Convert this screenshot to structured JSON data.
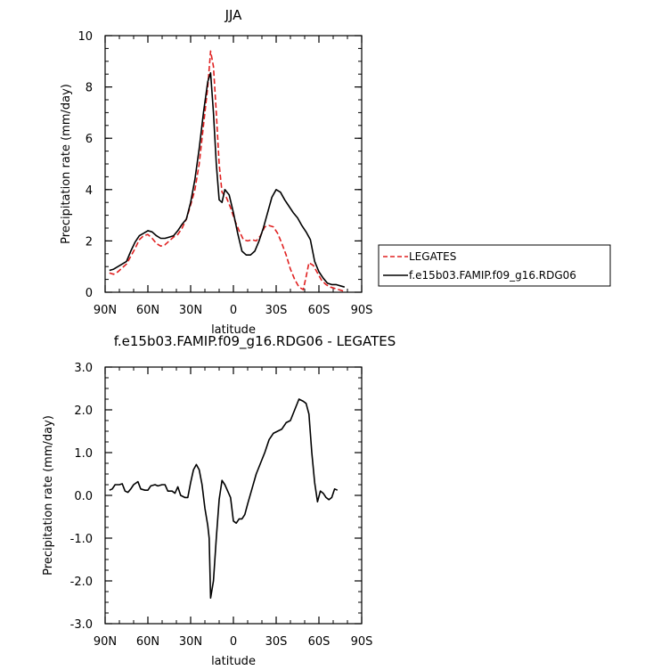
{
  "chart_data": [
    {
      "type": "line",
      "title": "JJA",
      "xlabel": "latitude",
      "ylabel": "Precipitation rate (mm/day)",
      "xlim": [
        90,
        -90
      ],
      "ylim": [
        0,
        10
      ],
      "xticks": [
        90,
        60,
        30,
        0,
        -30,
        -60,
        -90
      ],
      "xtick_labels": [
        "90N",
        "60N",
        "30N",
        "0",
        "30S",
        "60S",
        "90S"
      ],
      "yticks": [
        0,
        2,
        4,
        6,
        8,
        10
      ],
      "ytick_labels": [
        "0",
        "2",
        "4",
        "6",
        "8",
        "10"
      ],
      "legend": "right",
      "series": [
        {
          "name": "LEGATES",
          "color": "#e02020",
          "dash": true,
          "points": [
            [
              87,
              0.75
            ],
            [
              84,
              0.7
            ],
            [
              81,
              0.8
            ],
            [
              78,
              0.95
            ],
            [
              75,
              1.1
            ],
            [
              72,
              1.4
            ],
            [
              69,
              1.7
            ],
            [
              66,
              2.05
            ],
            [
              63,
              2.2
            ],
            [
              60,
              2.25
            ],
            [
              57,
              2.1
            ],
            [
              54,
              1.9
            ],
            [
              51,
              1.8
            ],
            [
              48,
              1.85
            ],
            [
              45,
              2.0
            ],
            [
              42,
              2.15
            ],
            [
              39,
              2.25
            ],
            [
              36,
              2.5
            ],
            [
              33,
              2.85
            ],
            [
              30,
              3.4
            ],
            [
              27,
              4.0
            ],
            [
              24,
              5.0
            ],
            [
              21,
              6.5
            ],
            [
              18,
              8.0
            ],
            [
              16,
              9.4
            ],
            [
              14,
              8.8
            ],
            [
              12,
              7.0
            ],
            [
              10,
              5.0
            ],
            [
              8,
              3.9
            ],
            [
              5,
              3.7
            ],
            [
              2,
              3.3
            ],
            [
              -1,
              2.8
            ],
            [
              -4,
              2.4
            ],
            [
              -7,
              2.05
            ],
            [
              -10,
              2.0
            ],
            [
              -13,
              2.05
            ],
            [
              -16,
              2.0
            ],
            [
              -19,
              2.2
            ],
            [
              -22,
              2.55
            ],
            [
              -25,
              2.6
            ],
            [
              -28,
              2.55
            ],
            [
              -31,
              2.3
            ],
            [
              -34,
              1.9
            ],
            [
              -37,
              1.45
            ],
            [
              -40,
              0.9
            ],
            [
              -43,
              0.5
            ],
            [
              -46,
              0.2
            ],
            [
              -49,
              0.1
            ],
            [
              -51,
              0.6
            ],
            [
              -53,
              1.15
            ],
            [
              -56,
              1.05
            ],
            [
              -59,
              0.75
            ],
            [
              -62,
              0.45
            ],
            [
              -65,
              0.3
            ],
            [
              -68,
              0.2
            ],
            [
              -71,
              0.15
            ],
            [
              -74,
              0.1
            ],
            [
              -77,
              0.05
            ]
          ]
        },
        {
          "name": "f.e15b03.FAMIP.f09_g16.RDG06",
          "color": "#000000",
          "dash": false,
          "points": [
            [
              87,
              0.85
            ],
            [
              84,
              0.9
            ],
            [
              81,
              1.0
            ],
            [
              78,
              1.1
            ],
            [
              75,
              1.2
            ],
            [
              72,
              1.6
            ],
            [
              69,
              1.95
            ],
            [
              66,
              2.2
            ],
            [
              63,
              2.3
            ],
            [
              60,
              2.4
            ],
            [
              57,
              2.35
            ],
            [
              54,
              2.2
            ],
            [
              51,
              2.1
            ],
            [
              48,
              2.1
            ],
            [
              45,
              2.15
            ],
            [
              42,
              2.2
            ],
            [
              39,
              2.4
            ],
            [
              36,
              2.65
            ],
            [
              33,
              2.85
            ],
            [
              30,
              3.5
            ],
            [
              27,
              4.4
            ],
            [
              24,
              5.6
            ],
            [
              21,
              7.0
            ],
            [
              18,
              8.2
            ],
            [
              16,
              8.55
            ],
            [
              14,
              7.0
            ],
            [
              12,
              5.0
            ],
            [
              10,
              3.6
            ],
            [
              8,
              3.5
            ],
            [
              6,
              4.0
            ],
            [
              3,
              3.8
            ],
            [
              0,
              3.1
            ],
            [
              -3,
              2.3
            ],
            [
              -6,
              1.6
            ],
            [
              -9,
              1.45
            ],
            [
              -12,
              1.45
            ],
            [
              -15,
              1.6
            ],
            [
              -18,
              2.0
            ],
            [
              -21,
              2.5
            ],
            [
              -24,
              3.1
            ],
            [
              -27,
              3.7
            ],
            [
              -30,
              4.0
            ],
            [
              -33,
              3.9
            ],
            [
              -36,
              3.6
            ],
            [
              -39,
              3.35
            ],
            [
              -42,
              3.1
            ],
            [
              -45,
              2.9
            ],
            [
              -48,
              2.6
            ],
            [
              -51,
              2.35
            ],
            [
              -54,
              2.05
            ],
            [
              -57,
              1.2
            ],
            [
              -60,
              0.8
            ],
            [
              -63,
              0.55
            ],
            [
              -66,
              0.35
            ],
            [
              -69,
              0.3
            ],
            [
              -72,
              0.3
            ],
            [
              -75,
              0.25
            ],
            [
              -78,
              0.2
            ]
          ]
        }
      ]
    },
    {
      "type": "line",
      "title": "f.e15b03.FAMIP.f09_g16.RDG06 - LEGATES",
      "xlabel": "latitude",
      "ylabel": "Precipitation rate (mm/day)",
      "xlim": [
        90,
        -90
      ],
      "ylim": [
        -3,
        3
      ],
      "xticks": [
        90,
        60,
        30,
        0,
        -30,
        -60,
        -90
      ],
      "xtick_labels": [
        "90N",
        "60N",
        "30N",
        "0",
        "30S",
        "60S",
        "90S"
      ],
      "yticks": [
        -3,
        -2,
        -1,
        0,
        1,
        2,
        3
      ],
      "ytick_labels": [
        "-3.0",
        "-2.0",
        "-1.0",
        "0.0",
        "1.0",
        "2.0",
        "3.0"
      ],
      "series": [
        {
          "color": "#000000",
          "dash": false,
          "points": [
            [
              87,
              0.12
            ],
            [
              85,
              0.15
            ],
            [
              83,
              0.25
            ],
            [
              80,
              0.25
            ],
            [
              78,
              0.27
            ],
            [
              76,
              0.1
            ],
            [
              74,
              0.07
            ],
            [
              72,
              0.15
            ],
            [
              70,
              0.25
            ],
            [
              67,
              0.32
            ],
            [
              65,
              0.15
            ],
            [
              62,
              0.12
            ],
            [
              60,
              0.12
            ],
            [
              58,
              0.22
            ],
            [
              55,
              0.25
            ],
            [
              53,
              0.22
            ],
            [
              50,
              0.25
            ],
            [
              48,
              0.25
            ],
            [
              46,
              0.1
            ],
            [
              43,
              0.1
            ],
            [
              41,
              0.05
            ],
            [
              39,
              0.2
            ],
            [
              37,
              0.0
            ],
            [
              34,
              -0.05
            ],
            [
              32,
              -0.05
            ],
            [
              30,
              0.3
            ],
            [
              28,
              0.6
            ],
            [
              26,
              0.72
            ],
            [
              24,
              0.6
            ],
            [
              22,
              0.25
            ],
            [
              20,
              -0.3
            ],
            [
              18,
              -0.7
            ],
            [
              17,
              -1.0
            ],
            [
              16,
              -2.4
            ],
            [
              14,
              -2.0
            ],
            [
              12,
              -1.0
            ],
            [
              10,
              -0.1
            ],
            [
              8,
              0.35
            ],
            [
              6,
              0.25
            ],
            [
              4,
              0.1
            ],
            [
              2,
              -0.05
            ],
            [
              0,
              -0.6
            ],
            [
              -2,
              -0.65
            ],
            [
              -4,
              -0.55
            ],
            [
              -6,
              -0.55
            ],
            [
              -8,
              -0.45
            ],
            [
              -10,
              -0.2
            ],
            [
              -13,
              0.15
            ],
            [
              -16,
              0.5
            ],
            [
              -19,
              0.75
            ],
            [
              -22,
              1.0
            ],
            [
              -25,
              1.3
            ],
            [
              -28,
              1.45
            ],
            [
              -31,
              1.5
            ],
            [
              -34,
              1.55
            ],
            [
              -37,
              1.7
            ],
            [
              -40,
              1.75
            ],
            [
              -43,
              2.0
            ],
            [
              -46,
              2.25
            ],
            [
              -49,
              2.2
            ],
            [
              -51,
              2.15
            ],
            [
              -53,
              1.9
            ],
            [
              -55,
              1.0
            ],
            [
              -57,
              0.3
            ],
            [
              -59,
              -0.15
            ],
            [
              -61,
              0.1
            ],
            [
              -63,
              0.05
            ],
            [
              -65,
              -0.05
            ],
            [
              -67,
              -0.1
            ],
            [
              -69,
              -0.05
            ],
            [
              -71,
              0.15
            ],
            [
              -73,
              0.12
            ]
          ]
        }
      ]
    }
  ]
}
